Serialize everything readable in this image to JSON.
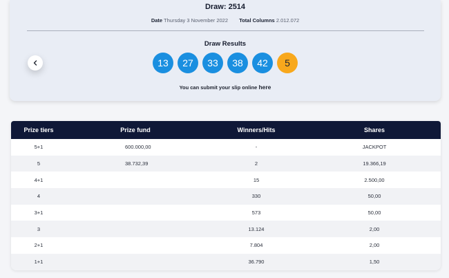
{
  "draw": {
    "title": "Draw: 2514"
  },
  "meta": {
    "date_label": "Date",
    "date_value": "Thursday 3 November 2022",
    "columns_label": "Total Columns",
    "columns_value": "2.012.072"
  },
  "results": {
    "title": "Draw Results",
    "numbers": [
      "13",
      "27",
      "33",
      "38",
      "42"
    ],
    "bonus": "5",
    "number_color": "#1a8fe0",
    "bonus_color": "#f8a81c"
  },
  "submit": {
    "text": "You can submit your slip online",
    "link": "here"
  },
  "nav": {
    "prev_icon": "chevron-left-icon"
  },
  "table": {
    "headers": [
      "Prize tiers",
      "Prize fund",
      "Winners/Hits",
      "Shares"
    ],
    "rows": [
      [
        "5+1",
        "600.000,00",
        "-",
        "JACKPOT"
      ],
      [
        "5",
        "38.732,39",
        "2",
        "19.366,19"
      ],
      [
        "4+1",
        "",
        "15",
        "2.500,00"
      ],
      [
        "4",
        "",
        "330",
        "50,00"
      ],
      [
        "3+1",
        "",
        "573",
        "50,00"
      ],
      [
        "3",
        "",
        "13.124",
        "2,00"
      ],
      [
        "2+1",
        "",
        "7.804",
        "2,00"
      ],
      [
        "1+1",
        "",
        "36.790",
        "1,50"
      ]
    ],
    "header_color": "#0f1837"
  }
}
